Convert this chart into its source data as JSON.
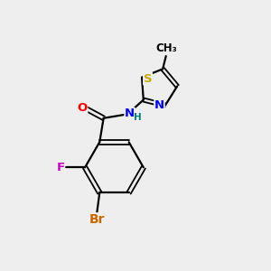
{
  "background_color": "#eeeeee",
  "bond_color": "#000000",
  "atom_colors": {
    "N": "#0000ff",
    "O": "#ff0000",
    "S": "#ccaa00",
    "F": "#cc00cc",
    "Br": "#cc6600",
    "C": "#000000",
    "H": "#008080"
  },
  "font_size": 10
}
